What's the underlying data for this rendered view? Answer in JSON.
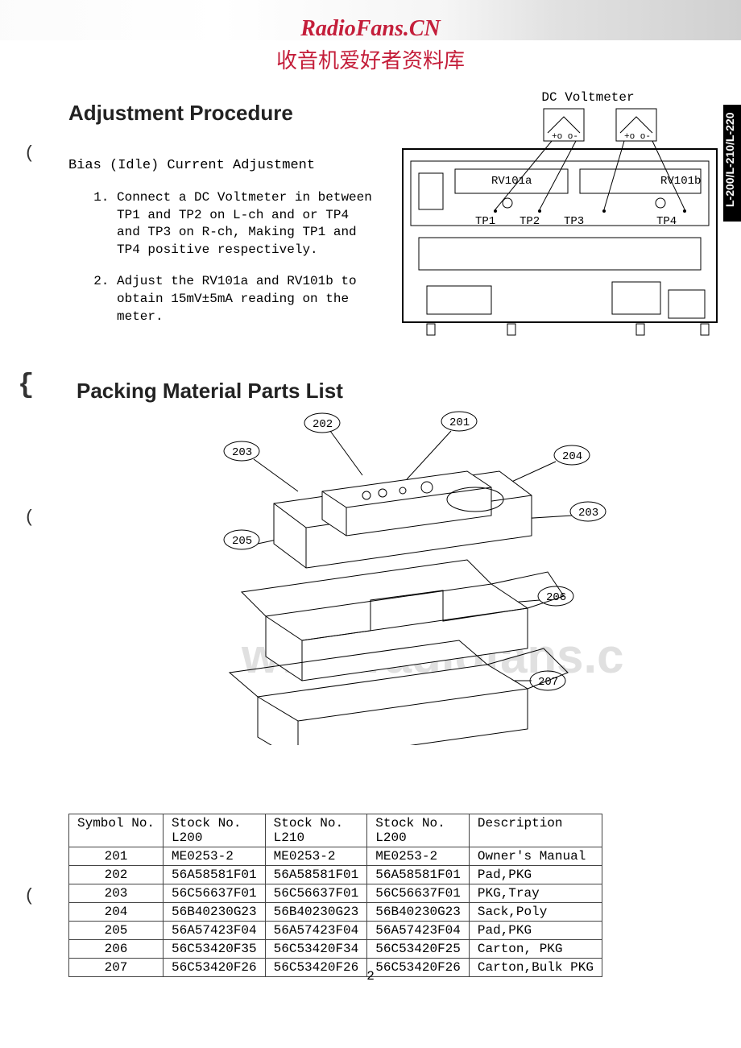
{
  "header": {
    "watermark_title": "RadioFans.CN",
    "watermark_sub": "收音机爱好者资料库",
    "title_color": "#c41e3a",
    "bg_watermark": "www.radiofans.c"
  },
  "side_tab": "L-200/L-210/L-220",
  "adjustment": {
    "title": "Adjustment Procedure",
    "subtitle": "Bias (Idle) Current Adjustment",
    "steps": {
      "s1": "Connect a DC Voltmeter in between TP1 and TP2 on L-ch and or TP4 and TP3 on R-ch, Making TP1 and TP4 positive respectively.",
      "s2": "Adjust the RV101a and RV101b to obtain 15mV±5mA reading on the meter."
    }
  },
  "diagram": {
    "label_top": "DC Voltmeter",
    "rv_a": "RV101a",
    "rv_b": "RV101b",
    "tp1": "TP1",
    "tp2": "TP2",
    "tp3": "TP3",
    "tp4": "TP4",
    "box_stroke": "#000000",
    "box_fill": "#ffffff"
  },
  "packing": {
    "title": "Packing Material Parts List",
    "callouts": {
      "c201": "201",
      "c202": "202",
      "c203": "203",
      "c204": "204",
      "c205": "205",
      "c206": "206",
      "c207": "207"
    }
  },
  "table": {
    "headers": {
      "sym": "Symbol No.",
      "s1a": "Stock No.",
      "s1b": "L200",
      "s2a": "Stock No.",
      "s2b": "L210",
      "s3a": "Stock No.",
      "s3b": "L200",
      "desc": "Description"
    },
    "rows": [
      {
        "sym": "201",
        "a": "ME0253-2",
        "b": "ME0253-2",
        "c": "ME0253-2",
        "d": "Owner's Manual"
      },
      {
        "sym": "202",
        "a": "56A58581F01",
        "b": "56A58581F01",
        "c": "56A58581F01",
        "d": "Pad,PKG"
      },
      {
        "sym": "203",
        "a": "56C56637F01",
        "b": "56C56637F01",
        "c": "56C56637F01",
        "d": "PKG,Tray"
      },
      {
        "sym": "204",
        "a": "56B40230G23",
        "b": "56B40230G23",
        "c": "56B40230G23",
        "d": "Sack,Poly"
      },
      {
        "sym": "205",
        "a": "56A57423F04",
        "b": "56A57423F04",
        "c": "56A57423F04",
        "d": "Pad,PKG"
      },
      {
        "sym": "206",
        "a": "56C53420F35",
        "b": "56C53420F34",
        "c": "56C53420F25",
        "d": "Carton, PKG"
      },
      {
        "sym": "207",
        "a": "56C53420F26",
        "b": "56C53420F26",
        "c": "56C53420F26",
        "d": "Carton,Bulk PKG"
      }
    ]
  },
  "page_num": "2"
}
